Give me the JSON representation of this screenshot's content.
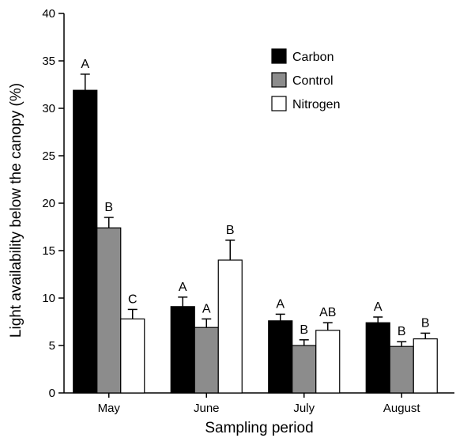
{
  "chart_data": {
    "type": "bar",
    "title": "",
    "xlabel": "Sampling period",
    "ylabel": "Light availability below the canopy (%)",
    "ylim": [
      0,
      40
    ],
    "yticks": [
      0,
      5,
      10,
      15,
      20,
      25,
      30,
      35,
      40
    ],
    "grid": false,
    "legend_position": "top-right",
    "categories": [
      "May",
      "June",
      "July",
      "August"
    ],
    "series": [
      {
        "name": "Carbon",
        "color": "#000000",
        "values": [
          31.9,
          9.1,
          7.6,
          7.4
        ],
        "errors": [
          1.7,
          1.0,
          0.7,
          0.6
        ],
        "labels": [
          "A",
          "A",
          "A",
          "A"
        ]
      },
      {
        "name": "Control",
        "color": "#8c8c8c",
        "values": [
          17.4,
          6.9,
          5.0,
          4.9
        ],
        "errors": [
          1.1,
          0.9,
          0.6,
          0.5
        ],
        "labels": [
          "B",
          "A",
          "B",
          "B"
        ]
      },
      {
        "name": "Nitrogen",
        "color": "#ffffff",
        "values": [
          7.8,
          14.0,
          6.6,
          5.7
        ],
        "errors": [
          1.0,
          2.1,
          0.8,
          0.6
        ],
        "labels": [
          "C",
          "B",
          "AB",
          "B"
        ]
      }
    ]
  }
}
